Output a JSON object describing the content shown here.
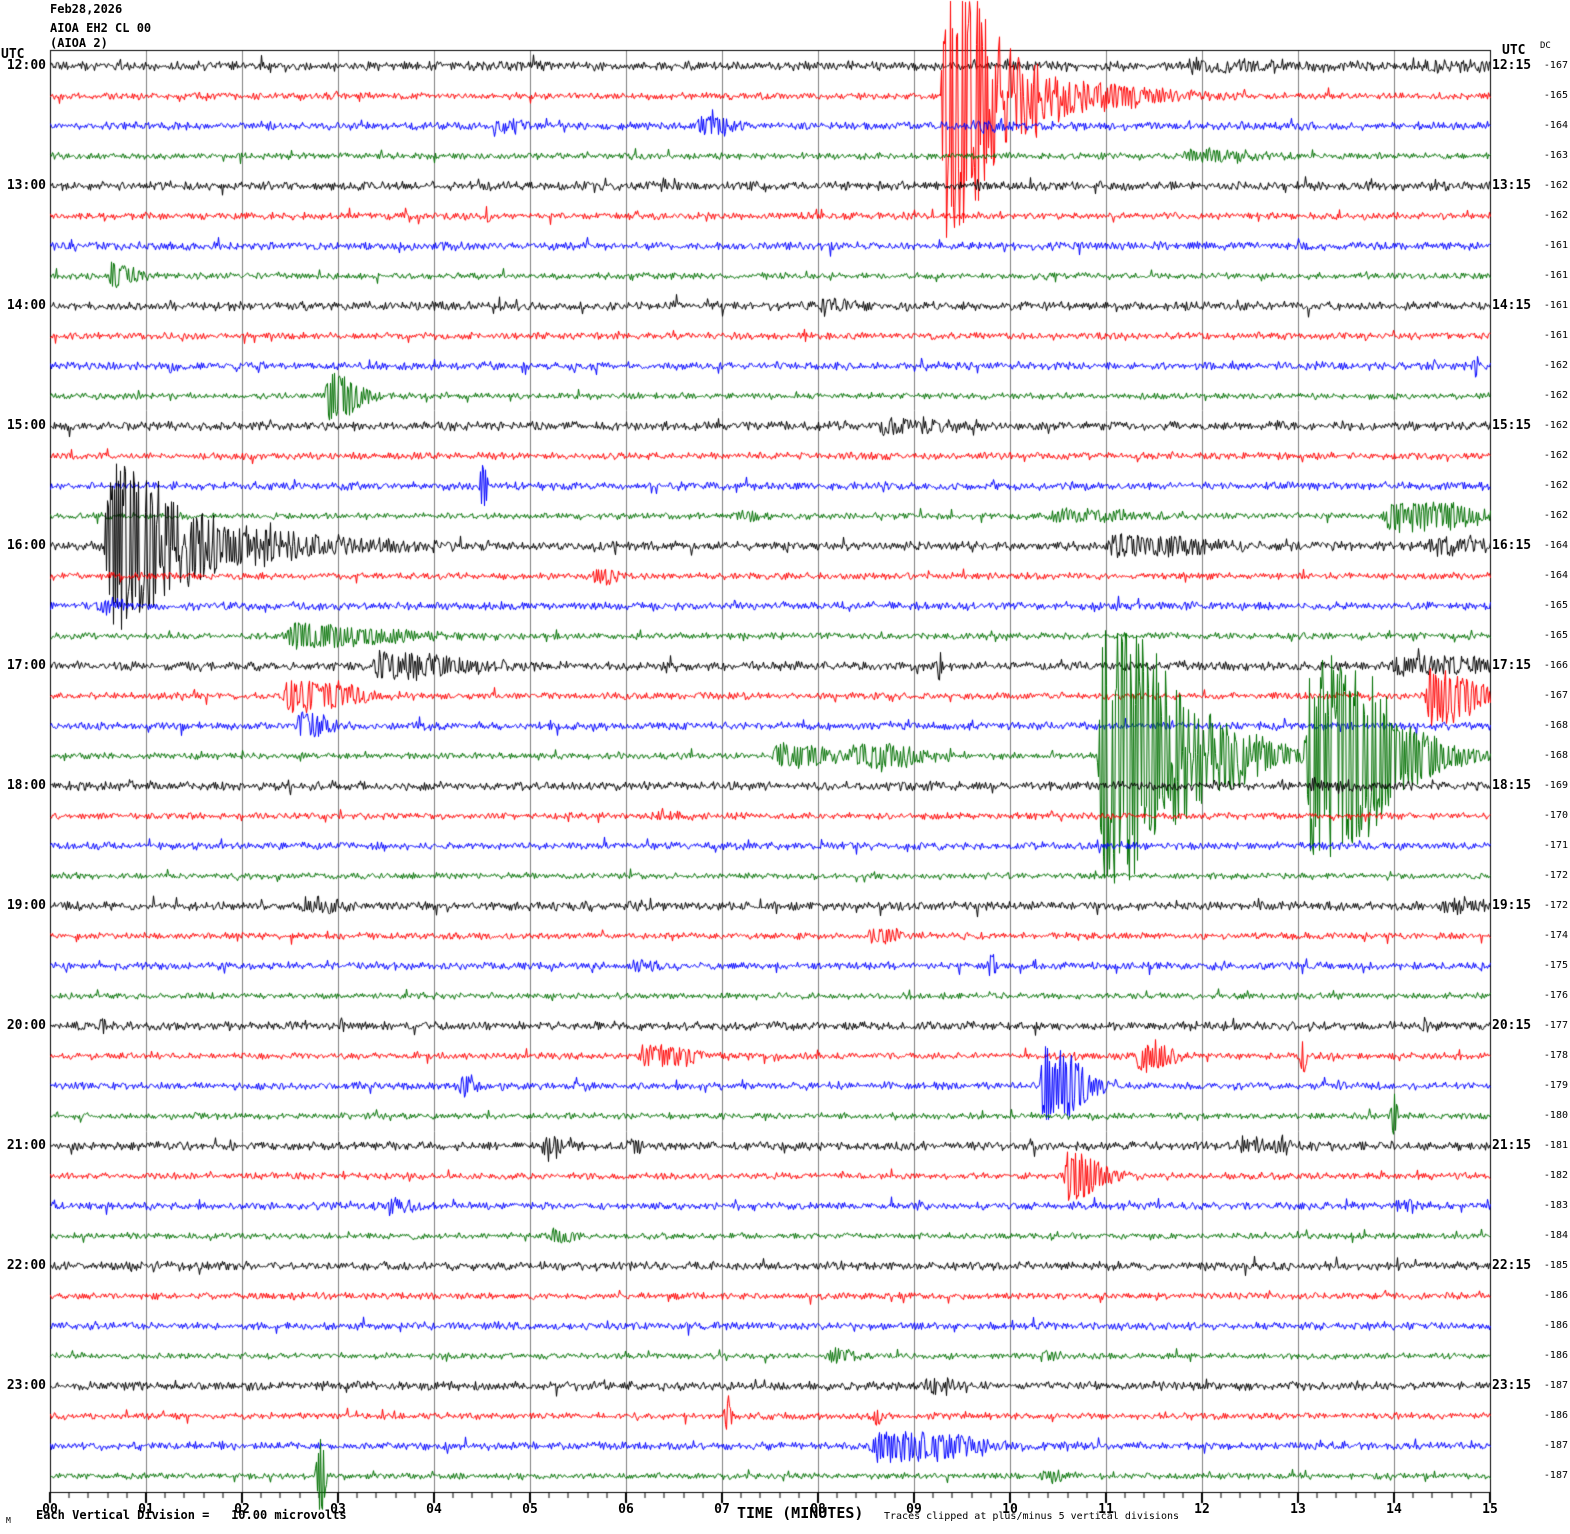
{
  "header": {
    "line1": "Feb28,2026",
    "line2": "AIOA EH2 CL 00",
    "line3": "(AIOA 2)"
  },
  "labels": {
    "utc_left": "UTC",
    "utc_right": "UTC",
    "dc_header": "DC",
    "xlabel": "TIME (MINUTES)",
    "clip_note": "Traces clipped at plus/minus 5 vertical divisions",
    "scale_note": "Each Vertical Division =   10.00 microvolts",
    "scale_prefix": "M"
  },
  "axes": {
    "x_ticks": [
      "00",
      "01",
      "02",
      "03",
      "04",
      "05",
      "06",
      "07",
      "08",
      "09",
      "10",
      "11",
      "12",
      "13",
      "14",
      "15"
    ],
    "minor_per_major": 5
  },
  "colors": {
    "black": "#000000",
    "red": "#ff0000",
    "blue": "#0000ff",
    "green": "#007000",
    "grid": "#808080",
    "border": "#000000"
  },
  "chart_data": {
    "type": "line",
    "subtype": "helicorder-seismogram",
    "title": "AIOA EH2 CL 00 (AIOA 2) Feb28,2026",
    "xlabel": "TIME (MINUTES)",
    "x_range_minutes": [
      0,
      15
    ],
    "minutes_per_row": 15,
    "utc_span": [
      "12:00",
      "24:00"
    ],
    "clip_divisions": 5,
    "microvolts_per_division": 10,
    "event_fields": "t=start minute in row, d=duration minutes, a=peak amplitude px, s=1 narrow spike",
    "rows": [
      {
        "c": "black",
        "L": "12:00",
        "R": "12:15",
        "dc": "-167",
        "n": 2.9,
        "ev": [
          {
            "t": 11.8,
            "d": 0.85,
            "a": 6
          },
          {
            "t": 14.25,
            "d": 0.7,
            "a": 5
          }
        ]
      },
      {
        "c": "red",
        "L": null,
        "R": null,
        "dc": "-165",
        "n": 2.2,
        "ev": [
          {
            "t": 9.27,
            "d": 0.4,
            "a": 150
          },
          {
            "t": 9.75,
            "d": 0.5,
            "a": 32
          },
          {
            "t": 10.15,
            "d": 1.0,
            "a": 17
          }
        ]
      },
      {
        "c": "blue",
        "L": null,
        "R": null,
        "dc": "-164",
        "n": 2.5,
        "ev": [
          {
            "t": 4.6,
            "d": 0.25,
            "a": 8
          },
          {
            "t": 6.72,
            "d": 0.3,
            "a": 10
          },
          {
            "t": 9.6,
            "d": 0.35,
            "a": 6
          }
        ]
      },
      {
        "c": "green",
        "L": null,
        "R": null,
        "dc": "-163",
        "n": 2.0,
        "ev": [
          {
            "t": 11.75,
            "d": 0.65,
            "a": 7
          }
        ]
      },
      {
        "c": "black",
        "L": "13:00",
        "R": "13:15",
        "dc": "-162",
        "n": 2.8,
        "ev": [
          {
            "t": 6.35,
            "d": 0.12,
            "a": 7,
            "s": 1
          }
        ]
      },
      {
        "c": "red",
        "L": null,
        "R": null,
        "dc": "-162",
        "n": 2.2,
        "ev": [
          {
            "t": 4.5,
            "d": 0.1,
            "a": 10,
            "s": 1
          }
        ]
      },
      {
        "c": "blue",
        "L": null,
        "R": null,
        "dc": "-161",
        "n": 2.5,
        "ev": []
      },
      {
        "c": "green",
        "L": null,
        "R": null,
        "dc": "-161",
        "n": 2.0,
        "ev": [
          {
            "t": 0.6,
            "d": 0.25,
            "a": 12
          }
        ]
      },
      {
        "c": "black",
        "L": "14:00",
        "R": "14:15",
        "dc": "-161",
        "n": 2.8,
        "ev": [
          {
            "t": 8.0,
            "d": 0.22,
            "a": 8
          }
        ]
      },
      {
        "c": "red",
        "L": null,
        "R": null,
        "dc": "-161",
        "n": 2.2,
        "ev": []
      },
      {
        "c": "blue",
        "L": null,
        "R": null,
        "dc": "-162",
        "n": 2.5,
        "ev": [
          {
            "t": 1.2,
            "d": 0.1,
            "a": 8,
            "s": 1
          },
          {
            "t": 14.8,
            "d": 0.1,
            "a": 12,
            "s": 1
          }
        ]
      },
      {
        "c": "green",
        "L": null,
        "R": null,
        "dc": "-162",
        "n": 2.0,
        "ev": [
          {
            "t": 2.85,
            "d": 0.3,
            "a": 24
          }
        ]
      },
      {
        "c": "black",
        "L": "15:00",
        "R": "15:15",
        "dc": "-162",
        "n": 2.8,
        "ev": [
          {
            "t": 8.6,
            "d": 0.6,
            "a": 8
          }
        ]
      },
      {
        "c": "red",
        "L": null,
        "R": null,
        "dc": "-162",
        "n": 2.2,
        "ev": []
      },
      {
        "c": "blue",
        "L": null,
        "R": null,
        "dc": "-162",
        "n": 2.5,
        "ev": [
          {
            "t": 4.45,
            "d": 0.12,
            "a": 28,
            "s": 1
          }
        ]
      },
      {
        "c": "green",
        "L": null,
        "R": null,
        "dc": "-162",
        "n": 2.0,
        "ev": [
          {
            "t": 7.1,
            "d": 0.25,
            "a": 6
          },
          {
            "t": 10.35,
            "d": 0.75,
            "a": 7
          },
          {
            "t": 13.85,
            "d": 0.75,
            "a": 16
          }
        ]
      },
      {
        "c": "black",
        "L": "16:00",
        "R": "16:15",
        "dc": "-164",
        "n": 2.8,
        "ev": [
          {
            "t": 0.55,
            "d": 0.5,
            "a": 95
          },
          {
            "t": 1.05,
            "d": 0.9,
            "a": 30
          },
          {
            "t": 1.95,
            "d": 1.3,
            "a": 10
          },
          {
            "t": 10.95,
            "d": 0.9,
            "a": 11
          },
          {
            "t": 14.35,
            "d": 0.45,
            "a": 8
          }
        ]
      },
      {
        "c": "red",
        "L": null,
        "R": null,
        "dc": "-164",
        "n": 2.2,
        "ev": [
          {
            "t": 5.65,
            "d": 0.2,
            "a": 8
          }
        ]
      },
      {
        "c": "blue",
        "L": null,
        "R": null,
        "dc": "-165",
        "n": 2.5,
        "ev": [
          {
            "t": 0.45,
            "d": 0.25,
            "a": 8
          }
        ]
      },
      {
        "c": "green",
        "L": null,
        "R": null,
        "dc": "-165",
        "n": 2.0,
        "ev": [
          {
            "t": 2.4,
            "d": 0.9,
            "a": 13
          }
        ]
      },
      {
        "c": "black",
        "L": "17:00",
        "R": "17:15",
        "dc": "-166",
        "n": 2.8,
        "ev": [
          {
            "t": 3.3,
            "d": 0.85,
            "a": 13
          },
          {
            "t": 9.2,
            "d": 0.12,
            "a": 15,
            "s": 1
          },
          {
            "t": 13.95,
            "d": 0.95,
            "a": 10
          }
        ]
      },
      {
        "c": "red",
        "L": null,
        "R": null,
        "dc": "-167",
        "n": 2.2,
        "ev": [
          {
            "t": 2.4,
            "d": 0.6,
            "a": 17
          },
          {
            "t": 14.3,
            "d": 0.45,
            "a": 30
          }
        ]
      },
      {
        "c": "blue",
        "L": null,
        "R": null,
        "dc": "-168",
        "n": 2.5,
        "ev": [
          {
            "t": 2.55,
            "d": 0.27,
            "a": 13
          }
        ]
      },
      {
        "c": "green",
        "L": null,
        "R": null,
        "dc": "-168",
        "n": 2.0,
        "ev": [
          {
            "t": 7.5,
            "d": 0.55,
            "a": 12
          },
          {
            "t": 8.3,
            "d": 0.6,
            "a": 14
          },
          {
            "t": 10.9,
            "d": 0.6,
            "a": 145
          },
          {
            "t": 11.55,
            "d": 0.9,
            "a": 32
          },
          {
            "t": 13.05,
            "d": 0.75,
            "a": 110
          }
        ]
      },
      {
        "c": "black",
        "L": "18:00",
        "R": "18:15",
        "dc": "-169",
        "n": 2.8,
        "ev": [
          {
            "t": 13.1,
            "d": 0.5,
            "a": 5
          }
        ]
      },
      {
        "c": "red",
        "L": null,
        "R": null,
        "dc": "-170",
        "n": 2.1,
        "ev": [
          {
            "t": 6.3,
            "d": 0.2,
            "a": 5
          }
        ]
      },
      {
        "c": "blue",
        "L": null,
        "R": null,
        "dc": "-171",
        "n": 2.4,
        "ev": []
      },
      {
        "c": "green",
        "L": null,
        "R": null,
        "dc": "-172",
        "n": 1.9,
        "ev": []
      },
      {
        "c": "black",
        "L": "19:00",
        "R": "19:15",
        "dc": "-172",
        "n": 2.7,
        "ev": [
          {
            "t": 2.6,
            "d": 0.3,
            "a": 8
          },
          {
            "t": 14.45,
            "d": 0.4,
            "a": 7
          }
        ]
      },
      {
        "c": "red",
        "L": null,
        "R": null,
        "dc": "-174",
        "n": 2.1,
        "ev": [
          {
            "t": 8.5,
            "d": 0.3,
            "a": 8
          }
        ]
      },
      {
        "c": "blue",
        "L": null,
        "R": null,
        "dc": "-175",
        "n": 2.4,
        "ev": [
          {
            "t": 6.05,
            "d": 0.3,
            "a": 6
          },
          {
            "t": 9.75,
            "d": 0.12,
            "a": 13,
            "s": 1
          }
        ]
      },
      {
        "c": "green",
        "L": null,
        "R": null,
        "dc": "-176",
        "n": 1.9,
        "ev": []
      },
      {
        "c": "black",
        "L": "20:00",
        "R": "20:15",
        "dc": "-177",
        "n": 2.7,
        "ev": [
          {
            "t": 0.5,
            "d": 0.1,
            "a": 8,
            "s": 1
          },
          {
            "t": 3.0,
            "d": 0.1,
            "a": 6,
            "s": 1
          },
          {
            "t": 14.25,
            "d": 0.1,
            "a": 8,
            "s": 1
          }
        ]
      },
      {
        "c": "red",
        "L": null,
        "R": null,
        "dc": "-178",
        "n": 2.1,
        "ev": [
          {
            "t": 6.1,
            "d": 0.5,
            "a": 12
          },
          {
            "t": 11.3,
            "d": 0.3,
            "a": 17
          },
          {
            "t": 13.0,
            "d": 0.1,
            "a": 22,
            "s": 1
          }
        ]
      },
      {
        "c": "blue",
        "L": null,
        "R": null,
        "dc": "-179",
        "n": 2.4,
        "ev": [
          {
            "t": 4.25,
            "d": 0.15,
            "a": 10
          },
          {
            "t": 10.3,
            "d": 0.35,
            "a": 42
          }
        ]
      },
      {
        "c": "green",
        "L": null,
        "R": null,
        "dc": "-180",
        "n": 1.9,
        "ev": [
          {
            "t": 13.95,
            "d": 0.1,
            "a": 25,
            "s": 1
          }
        ]
      },
      {
        "c": "black",
        "L": "21:00",
        "R": "21:15",
        "dc": "-181",
        "n": 2.7,
        "ev": [
          {
            "t": 5.1,
            "d": 0.22,
            "a": 9
          },
          {
            "t": 6.0,
            "d": 0.15,
            "a": 8
          },
          {
            "t": 12.35,
            "d": 0.5,
            "a": 7
          }
        ]
      },
      {
        "c": "red",
        "L": null,
        "R": null,
        "dc": "-182",
        "n": 2.1,
        "ev": [
          {
            "t": 10.55,
            "d": 0.3,
            "a": 30
          }
        ]
      },
      {
        "c": "blue",
        "L": null,
        "R": null,
        "dc": "-183",
        "n": 2.4,
        "ev": [
          {
            "t": 3.5,
            "d": 0.2,
            "a": 8
          },
          {
            "t": 14.0,
            "d": 0.2,
            "a": 6
          }
        ]
      },
      {
        "c": "green",
        "L": null,
        "R": null,
        "dc": "-184",
        "n": 1.9,
        "ev": [
          {
            "t": 5.2,
            "d": 0.2,
            "a": 8
          }
        ]
      },
      {
        "c": "black",
        "L": "22:00",
        "R": "22:15",
        "dc": "-185",
        "n": 2.7,
        "ev": []
      },
      {
        "c": "red",
        "L": null,
        "R": null,
        "dc": "-186",
        "n": 2.1,
        "ev": []
      },
      {
        "c": "blue",
        "L": null,
        "R": null,
        "dc": "-186",
        "n": 2.4,
        "ev": []
      },
      {
        "c": "green",
        "L": null,
        "R": null,
        "dc": "-186",
        "n": 1.9,
        "ev": [
          {
            "t": 8.1,
            "d": 0.25,
            "a": 6
          },
          {
            "t": 10.3,
            "d": 0.2,
            "a": 6
          }
        ]
      },
      {
        "c": "black",
        "L": "23:00",
        "R": "23:15",
        "dc": "-187",
        "n": 2.7,
        "ev": [
          {
            "t": 9.1,
            "d": 0.25,
            "a": 8
          }
        ]
      },
      {
        "c": "red",
        "L": null,
        "R": null,
        "dc": "-186",
        "n": 2.1,
        "ev": [
          {
            "t": 7.0,
            "d": 0.12,
            "a": 20,
            "s": 1
          },
          {
            "t": 8.55,
            "d": 0.12,
            "a": 12,
            "s": 1
          }
        ]
      },
      {
        "c": "blue",
        "L": null,
        "R": null,
        "dc": "-187",
        "n": 2.4,
        "ev": [
          {
            "t": 8.5,
            "d": 0.85,
            "a": 16
          }
        ]
      },
      {
        "c": "green",
        "L": null,
        "R": null,
        "dc": "-187",
        "n": 1.9,
        "ev": [
          {
            "t": 2.75,
            "d": 0.14,
            "a": 48,
            "s": 1
          },
          {
            "t": 10.3,
            "d": 0.25,
            "a": 6
          }
        ]
      }
    ]
  }
}
